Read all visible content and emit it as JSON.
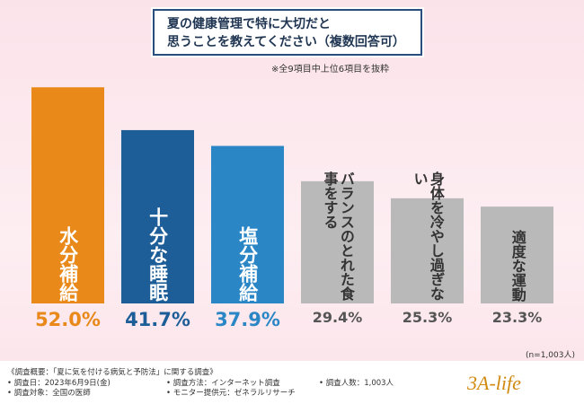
{
  "chart_data": {
    "type": "bar",
    "title": [
      "夏の健康管理で特に大切だと",
      "思うことを教えてください（複数回答可）"
    ],
    "note": "※全9項目中上位6項目を抜粋",
    "categories": [
      "水分補給",
      "十分な睡眠",
      "塩分補給",
      "バランスのとれた食事をする",
      "身体を冷やし過ぎない",
      "適度な運動"
    ],
    "values": [
      52.0,
      41.7,
      37.9,
      29.4,
      25.3,
      23.3
    ],
    "value_labels": [
      "52.0%",
      "41.7%",
      "37.9%",
      "29.4%",
      "25.3%",
      "23.3%"
    ],
    "colors": [
      "#e8891a",
      "#1d5e98",
      "#2b86c6",
      "#b9b9b9",
      "#b9b9b9",
      "#b9b9b9"
    ],
    "sample_size": "(n=1,003人)"
  },
  "footer": {
    "heading": "《調査概要：「夏に気を付ける病気と予防法」に関する調査》",
    "items": [
      "• 調査日：2023年6月9日(金)",
      "• 調査方法：インターネット調査",
      "• 調査人数：1,003人",
      "• 調査対象：全国の医師",
      "• モニター提供元：ゼネラルリサーチ"
    ],
    "logo": "3A-life"
  }
}
